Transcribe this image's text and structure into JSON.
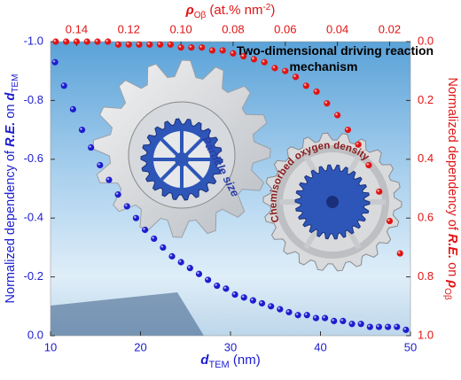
{
  "chart_data": {
    "type": "scatter",
    "title": "Two-dimensional driving reaction mechanism",
    "annotations": [
      "Particle size",
      "Chemisorbed oxygen density"
    ],
    "xlabel": [
      "d",
      "TEM",
      " (nm)"
    ],
    "x2label": [
      "ρ",
      "Oβ",
      " (at.% nm",
      "-2",
      ")"
    ],
    "ylabel": [
      "Normalized dependency of ",
      "R.E.",
      " on ",
      "d",
      "TEM"
    ],
    "y2label": [
      "Normalized dependency of ",
      "R.E.",
      " on ",
      "ρ",
      "Oβ"
    ],
    "xlim": [
      10,
      50
    ],
    "xticks": [
      10,
      20,
      30,
      40,
      50
    ],
    "x2lim": [
      0.15,
      0.012
    ],
    "x2ticks": [
      0.14,
      0.12,
      {
        "value": 0.1,
        "label": "0.10"
      },
      0.08,
      0.06,
      0.04,
      0.02
    ],
    "ylim": [
      0,
      -1
    ],
    "yticks": [
      {
        "value": 0,
        "label": "0.0"
      },
      -0.2,
      -0.4,
      -0.6,
      -0.8,
      {
        "value": -1,
        "label": "-1.0"
      }
    ],
    "y2lim": [
      1,
      0
    ],
    "y2ticks": [
      {
        "value": 0,
        "label": "0.0"
      },
      0.2,
      0.4,
      0.6,
      0.8,
      {
        "value": 1,
        "label": "1.0"
      }
    ],
    "series": [
      {
        "color": "#1c1ccf",
        "x": [
          10.5,
          11.5,
          12.5,
          13.5,
          14.5,
          15.5,
          16.5,
          17.5,
          18.5,
          19.5,
          20.5,
          21.5,
          22.5,
          23.5,
          24.5,
          25.5,
          26.5,
          27.5,
          28.5,
          29.5,
          30.5,
          31.5,
          32.5,
          33.5,
          34.5,
          35.5,
          36.5,
          37.5,
          38.5,
          39.5,
          40.5,
          41.5,
          42.5,
          43.5,
          44.5,
          45.5,
          46.5,
          47.5,
          48.5,
          49.5
        ],
        "values": [
          -0.93,
          -0.85,
          -0.77,
          -0.7,
          -0.64,
          -0.58,
          -0.53,
          -0.48,
          -0.44,
          -0.4,
          -0.36,
          -0.33,
          -0.3,
          -0.27,
          -0.25,
          -0.23,
          -0.21,
          -0.19,
          -0.17,
          -0.16,
          -0.14,
          -0.13,
          -0.12,
          -0.11,
          -0.1,
          -0.09,
          -0.08,
          -0.07,
          -0.07,
          -0.06,
          -0.06,
          -0.05,
          -0.05,
          -0.04,
          -0.04,
          -0.03,
          -0.03,
          -0.03,
          -0.03,
          -0.02
        ]
      },
      {
        "color": "#e01414",
        "axis": "y2",
        "x": [
          0.148,
          0.144,
          0.14,
          0.136,
          0.132,
          0.128,
          0.124,
          0.12,
          0.116,
          0.112,
          0.108,
          0.104,
          0.1,
          0.096,
          0.092,
          0.088,
          0.084,
          0.08,
          0.076,
          0.072,
          0.068,
          0.064,
          0.06,
          0.056,
          0.052,
          0.048,
          0.044,
          0.04,
          0.036,
          0.032,
          0.028,
          0.024,
          0.02,
          0.016
        ],
        "values": [
          0,
          0,
          0,
          0,
          0,
          0,
          0.01,
          0.01,
          0.01,
          0.01,
          0.01,
          0.01,
          0.02,
          0.02,
          0.02,
          0.03,
          0.03,
          0.04,
          0.05,
          0.06,
          0.07,
          0.09,
          0.1,
          0.12,
          0.15,
          0.17,
          0.21,
          0.25,
          0.3,
          0.35,
          0.42,
          0.51,
          0.61,
          0.72
        ]
      }
    ]
  }
}
